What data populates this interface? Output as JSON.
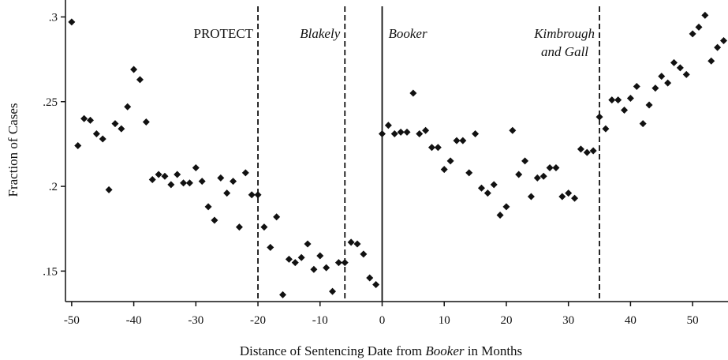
{
  "chart_data": {
    "type": "scatter",
    "ylabel": "Fraction of Cases",
    "xlabel": [
      "Distance of Sentencing Date from ",
      "Booker",
      " in Months"
    ],
    "x": [
      -50,
      -49,
      -48,
      -47,
      -46,
      -45,
      -44,
      -43,
      -42,
      -41,
      -40,
      -39,
      -38,
      -37,
      -36,
      -35,
      -34,
      -33,
      -32,
      -31,
      -30,
      -29,
      -28,
      -27,
      -26,
      -25,
      -24,
      -23,
      -22,
      -21,
      -20,
      -19,
      -18,
      -17,
      -16,
      -15,
      -14,
      -13,
      -12,
      -11,
      -10,
      -9,
      -8,
      -7,
      -6,
      -5,
      -4,
      -3,
      -2,
      -1,
      0,
      1,
      2,
      3,
      4,
      5,
      6,
      7,
      8,
      9,
      10,
      11,
      12,
      13,
      14,
      15,
      16,
      17,
      18,
      19,
      20,
      21,
      22,
      23,
      24,
      25,
      26,
      27,
      28,
      29,
      30,
      31,
      32,
      33,
      34,
      35,
      36,
      37,
      38,
      39,
      40,
      41,
      42,
      43,
      44,
      45,
      46,
      47,
      48,
      49,
      50,
      51,
      52,
      53,
      54,
      55
    ],
    "values": [
      0.297,
      0.224,
      0.24,
      0.239,
      0.231,
      0.228,
      0.198,
      0.237,
      0.234,
      0.247,
      0.269,
      0.263,
      0.238,
      0.204,
      0.207,
      0.206,
      0.201,
      0.207,
      0.202,
      0.202,
      0.211,
      0.203,
      0.188,
      0.18,
      0.205,
      0.196,
      0.203,
      0.176,
      0.208,
      0.195,
      0.195,
      0.176,
      0.164,
      0.182,
      0.136,
      0.157,
      0.155,
      0.158,
      0.166,
      0.151,
      0.159,
      0.152,
      0.138,
      0.155,
      0.155,
      0.167,
      0.166,
      0.16,
      0.146,
      0.142,
      0.231,
      0.236,
      0.231,
      0.232,
      0.232,
      0.255,
      0.231,
      0.233,
      0.223,
      0.223,
      0.21,
      0.215,
      0.227,
      0.227,
      0.208,
      0.231,
      0.199,
      0.196,
      0.201,
      0.183,
      0.188,
      0.233,
      0.207,
      0.215,
      0.194,
      0.205,
      0.206,
      0.211,
      0.211,
      0.194,
      0.196,
      0.193,
      0.222,
      0.22,
      0.221,
      0.241,
      0.234,
      0.251,
      0.251,
      0.245,
      0.252,
      0.259,
      0.237,
      0.248,
      0.258,
      0.265,
      0.261,
      0.273,
      0.27,
      0.266,
      0.29,
      0.294,
      0.301,
      0.274,
      0.282,
      0.286
    ],
    "color": "#111111",
    "xlim": [
      -51,
      55.7
    ],
    "ylim": [
      0.132,
      0.31
    ],
    "xticks": [
      -50,
      -40,
      -30,
      -20,
      -10,
      0,
      10,
      20,
      30,
      40,
      50
    ],
    "yticks": [
      {
        "value": 0.15,
        "label": ".15"
      },
      {
        "value": 0.2,
        "label": ".2"
      },
      {
        "value": 0.25,
        "label": ".25"
      },
      {
        "value": 0.3,
        "label": ".3"
      }
    ],
    "vlines": [
      {
        "x": -20,
        "dashed": true,
        "label": [
          "PROTECT"
        ]
      },
      {
        "x": -6,
        "dashed": true,
        "label": [
          "Blakely"
        ]
      },
      {
        "x": 0,
        "dashed": false,
        "label": [
          "Booker"
        ]
      },
      {
        "x": 35,
        "dashed": true,
        "label": [
          "Kimbrough",
          "and Gall"
        ]
      }
    ]
  }
}
